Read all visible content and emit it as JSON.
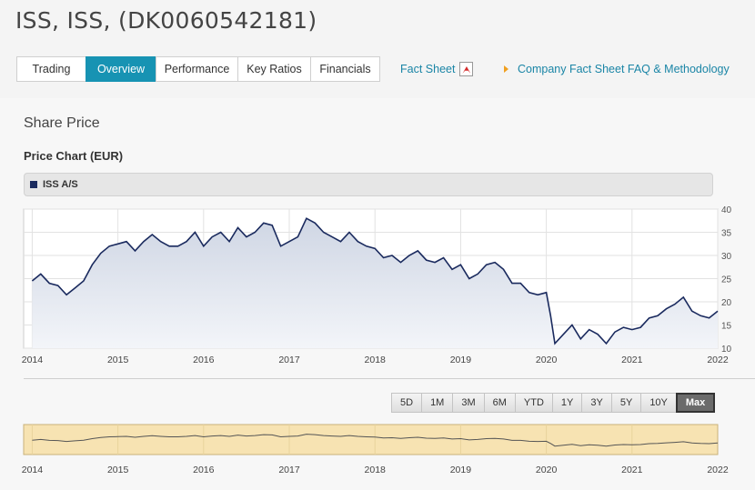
{
  "header": {
    "title": "ISS, ISS, (DK0060542181)"
  },
  "tabs": [
    {
      "label": "Trading",
      "active": false
    },
    {
      "label": "Overview",
      "active": true
    },
    {
      "label": "Performance",
      "active": false
    },
    {
      "label": "Key Ratios",
      "active": false
    },
    {
      "label": "Financials",
      "active": false
    }
  ],
  "links": {
    "fact_sheet": "Fact Sheet",
    "faq": "Company Fact Sheet FAQ & Methodology"
  },
  "section_title": "Share Price",
  "chart_title": "Price Chart (EUR)",
  "legend": {
    "label": "ISS A/S",
    "color": "#1a2a5e"
  },
  "range_buttons": [
    {
      "label": "5D",
      "active": false
    },
    {
      "label": "1M",
      "active": false
    },
    {
      "label": "3M",
      "active": false
    },
    {
      "label": "6M",
      "active": false
    },
    {
      "label": "YTD",
      "active": false
    },
    {
      "label": "1Y",
      "active": false
    },
    {
      "label": "3Y",
      "active": false
    },
    {
      "label": "5Y",
      "active": false
    },
    {
      "label": "10Y",
      "active": false
    },
    {
      "label": "Max",
      "active": true
    }
  ],
  "chart_data": {
    "type": "area",
    "series": [
      {
        "x": [
          2014.0,
          2014.1,
          2014.2,
          2014.3,
          2014.4,
          2014.5,
          2014.6,
          2014.7,
          2014.8,
          2014.9,
          2015.0,
          2015.1,
          2015.2,
          2015.3,
          2015.4,
          2015.5,
          2015.6,
          2015.7,
          2015.8,
          2015.9,
          2016.0,
          2016.1,
          2016.2,
          2016.3,
          2016.4,
          2016.5,
          2016.6,
          2016.7,
          2016.8,
          2016.9,
          2017.0,
          2017.1,
          2017.2,
          2017.3,
          2017.4,
          2017.5,
          2017.6,
          2017.7,
          2017.8,
          2017.9,
          2018.0,
          2018.1,
          2018.2,
          2018.3,
          2018.4,
          2018.5,
          2018.6,
          2018.7,
          2018.8,
          2018.9,
          2019.0,
          2019.1,
          2019.2,
          2019.3,
          2019.4,
          2019.5,
          2019.6,
          2019.7,
          2019.8,
          2019.9,
          2020.0,
          2020.05,
          2020.1,
          2020.2,
          2020.3,
          2020.4,
          2020.5,
          2020.6,
          2020.7,
          2020.8,
          2020.9,
          2021.0,
          2021.1,
          2021.2,
          2021.3,
          2021.4,
          2021.5,
          2021.6,
          2021.7,
          2021.8,
          2021.9,
          2022.0
        ],
        "y": [
          24.5,
          26,
          24,
          23.5,
          21.5,
          23,
          24.5,
          28,
          30.5,
          32,
          32.5,
          33,
          31,
          33,
          34.5,
          33,
          32,
          32,
          33,
          35,
          32,
          34,
          35,
          33,
          36,
          34,
          35,
          37,
          36.5,
          32,
          33,
          34,
          38,
          37,
          35,
          34,
          33,
          35,
          33,
          32,
          31.5,
          29.5,
          30,
          28.5,
          30,
          31,
          29,
          28.5,
          29.5,
          27,
          28,
          25,
          26,
          28,
          28.5,
          27,
          24,
          24,
          22,
          21.5,
          22,
          17,
          11,
          13,
          15,
          12,
          14,
          13,
          11,
          13.5,
          14.5,
          14,
          14.5,
          16.5,
          17,
          18.5,
          19.5,
          21,
          18,
          17,
          16.5,
          18
        ]
      }
    ],
    "x_ticks": [
      "2014",
      "2015",
      "2016",
      "2017",
      "2018",
      "2019",
      "2020",
      "2021",
      "2022"
    ],
    "y_ticks": [
      "10",
      "15",
      "20",
      "25",
      "30",
      "35",
      "40"
    ],
    "xlim": [
      2013.9,
      2022.0
    ],
    "ylim": [
      10,
      40
    ],
    "grid": true,
    "line_color": "#1a2a5e",
    "fill_color": "#cfd6e4",
    "navigator_fill": "#f7e3b2",
    "navigator_line": "#555555"
  }
}
